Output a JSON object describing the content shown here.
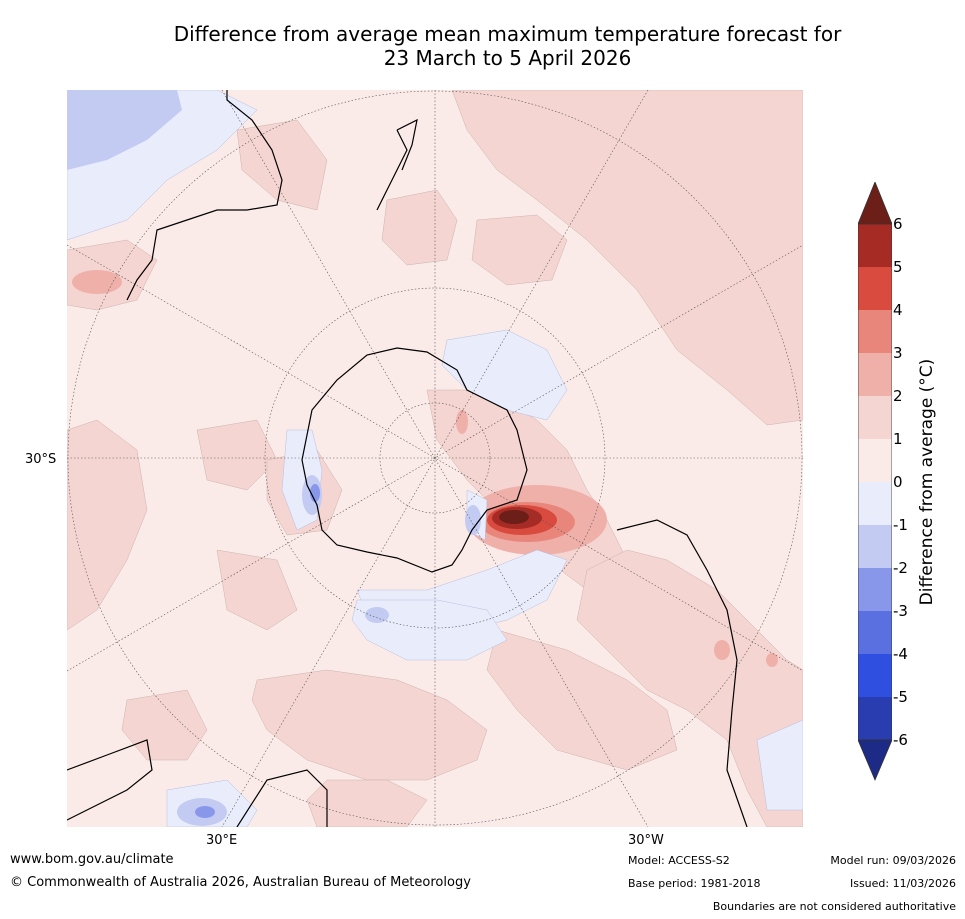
{
  "title": {
    "line1": "Difference from average mean maximum temperature forecast for",
    "line2": "23 March to 5 April 2026"
  },
  "map": {
    "lat_label": "30°S",
    "lon_labels": {
      "east": "30°E",
      "west": "30°W"
    }
  },
  "colorbar": {
    "title": "Difference from average (°C)",
    "ticks": [
      "6",
      "5",
      "4",
      "3",
      "2",
      "1",
      "0",
      "-1",
      "-2",
      "-3",
      "-4",
      "-5",
      "-6"
    ],
    "colors": {
      "over": "#6b1f18",
      "5_6": "#a62b25",
      "4_5": "#d94b3f",
      "3_4": "#e8867b",
      "2_3": "#efb0a9",
      "1_2": "#f5d5d1",
      "0_1": "#fbebe8",
      "m1_0": "#e9edfb",
      "m2_m1": "#c3cbf3",
      "m3_m2": "#8897ea",
      "m4_m3": "#5a6fe0",
      "m5_m4": "#2e4fdf",
      "m6_m5": "#2a3db0",
      "under": "#1d2a86"
    }
  },
  "footer": {
    "url": "www.bom.gov.au/climate",
    "copyright": "© Commonwealth of Australia 2026, Australian Bureau of Meteorology",
    "model": "Model: ACCESS-S2",
    "base_period": "Base period: 1981-2018",
    "model_run": "Model run: 09/03/2026",
    "issued": "Issued: 11/03/2026",
    "disclaimer": "Boundaries are not considered authoritative"
  }
}
